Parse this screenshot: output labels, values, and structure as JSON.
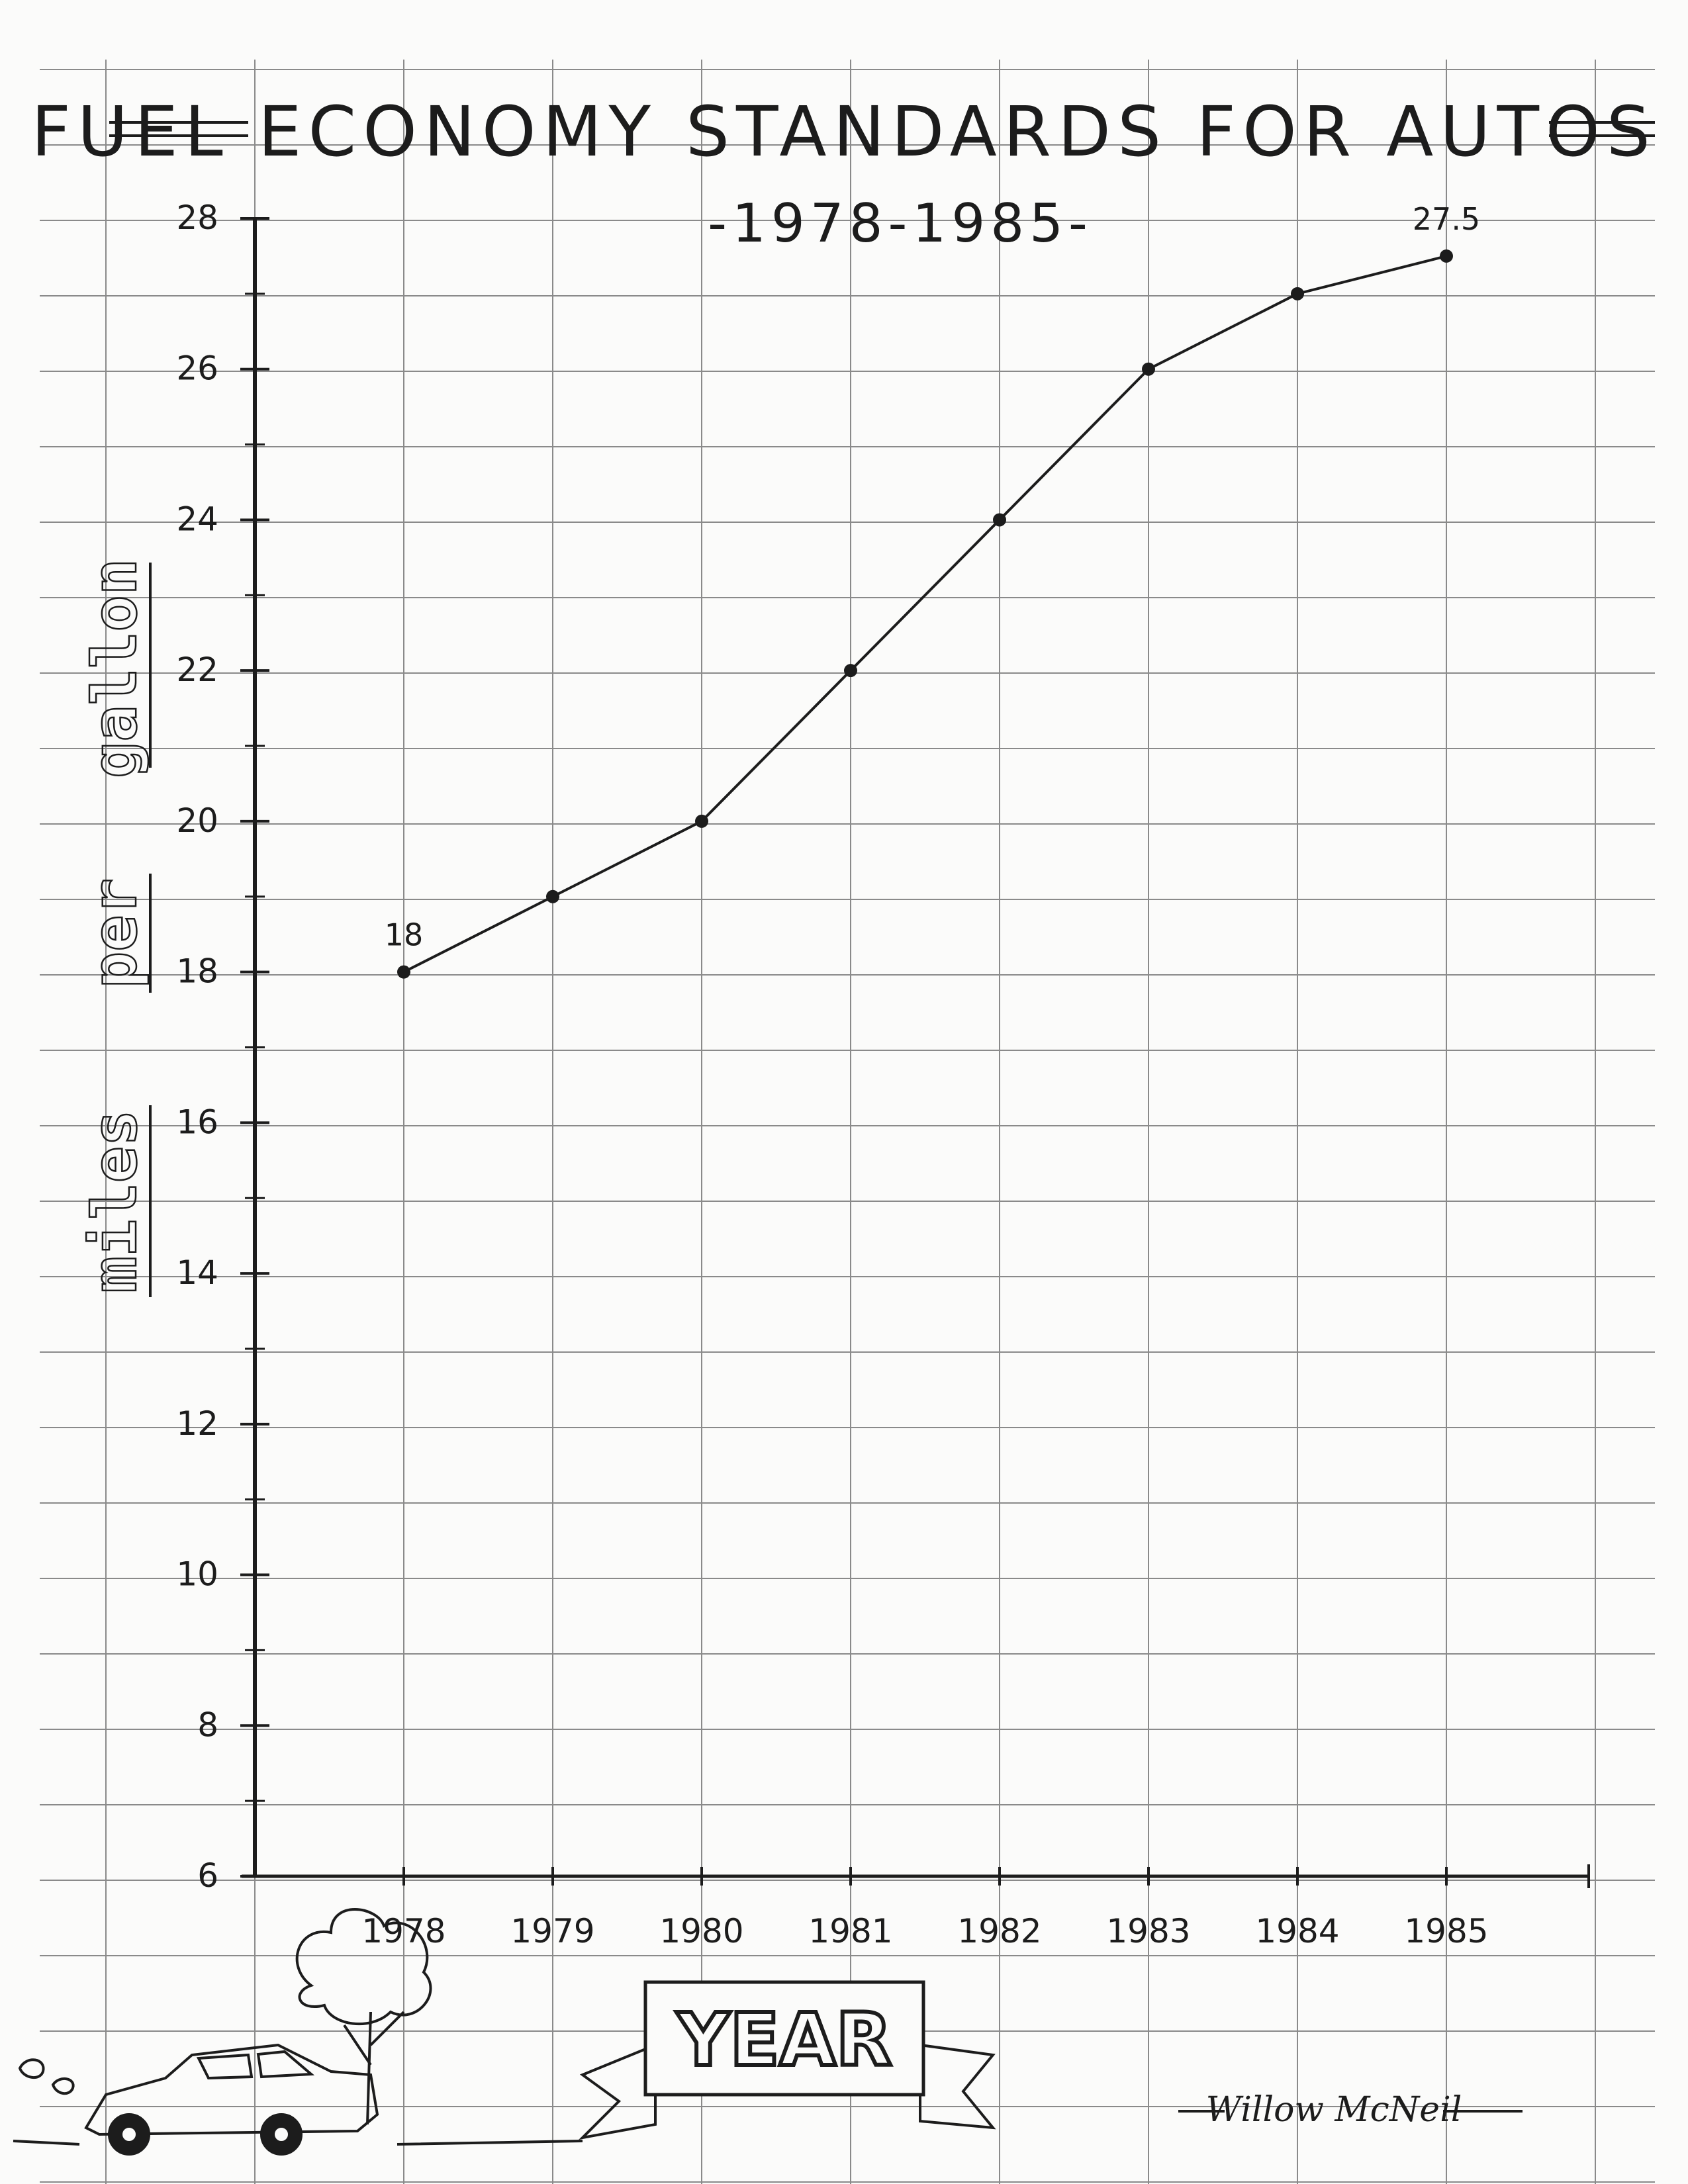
{
  "chart_data": {
    "type": "line",
    "title": "FUEL ECONOMY STANDARDS FOR AUTOS",
    "subtitle": "-1978-1985-",
    "xlabel": "YEAR",
    "ylabel": "miles per gallon",
    "ylabel_words": [
      "miles",
      "per",
      "gallon"
    ],
    "categories": [
      "1978",
      "1979",
      "1980",
      "1981",
      "1982",
      "1983",
      "1984",
      "1985"
    ],
    "values": [
      18,
      19,
      20,
      22,
      24,
      26,
      27,
      27.5
    ],
    "data_labels": [
      {
        "category": "1978",
        "text": "18"
      },
      {
        "category": "1985",
        "text": "27.5"
      }
    ],
    "ylim": [
      6,
      28
    ],
    "yticks": [
      "6",
      "8",
      "10",
      "12",
      "14",
      "16",
      "18",
      "20",
      "22",
      "24",
      "26",
      "28"
    ],
    "grid": true,
    "legend": "none",
    "signature": "Willow McNeil",
    "colors": {
      "ink": "#1c1c1c",
      "grid": "#8a8a8a",
      "paper": "#fbfbfa"
    }
  }
}
